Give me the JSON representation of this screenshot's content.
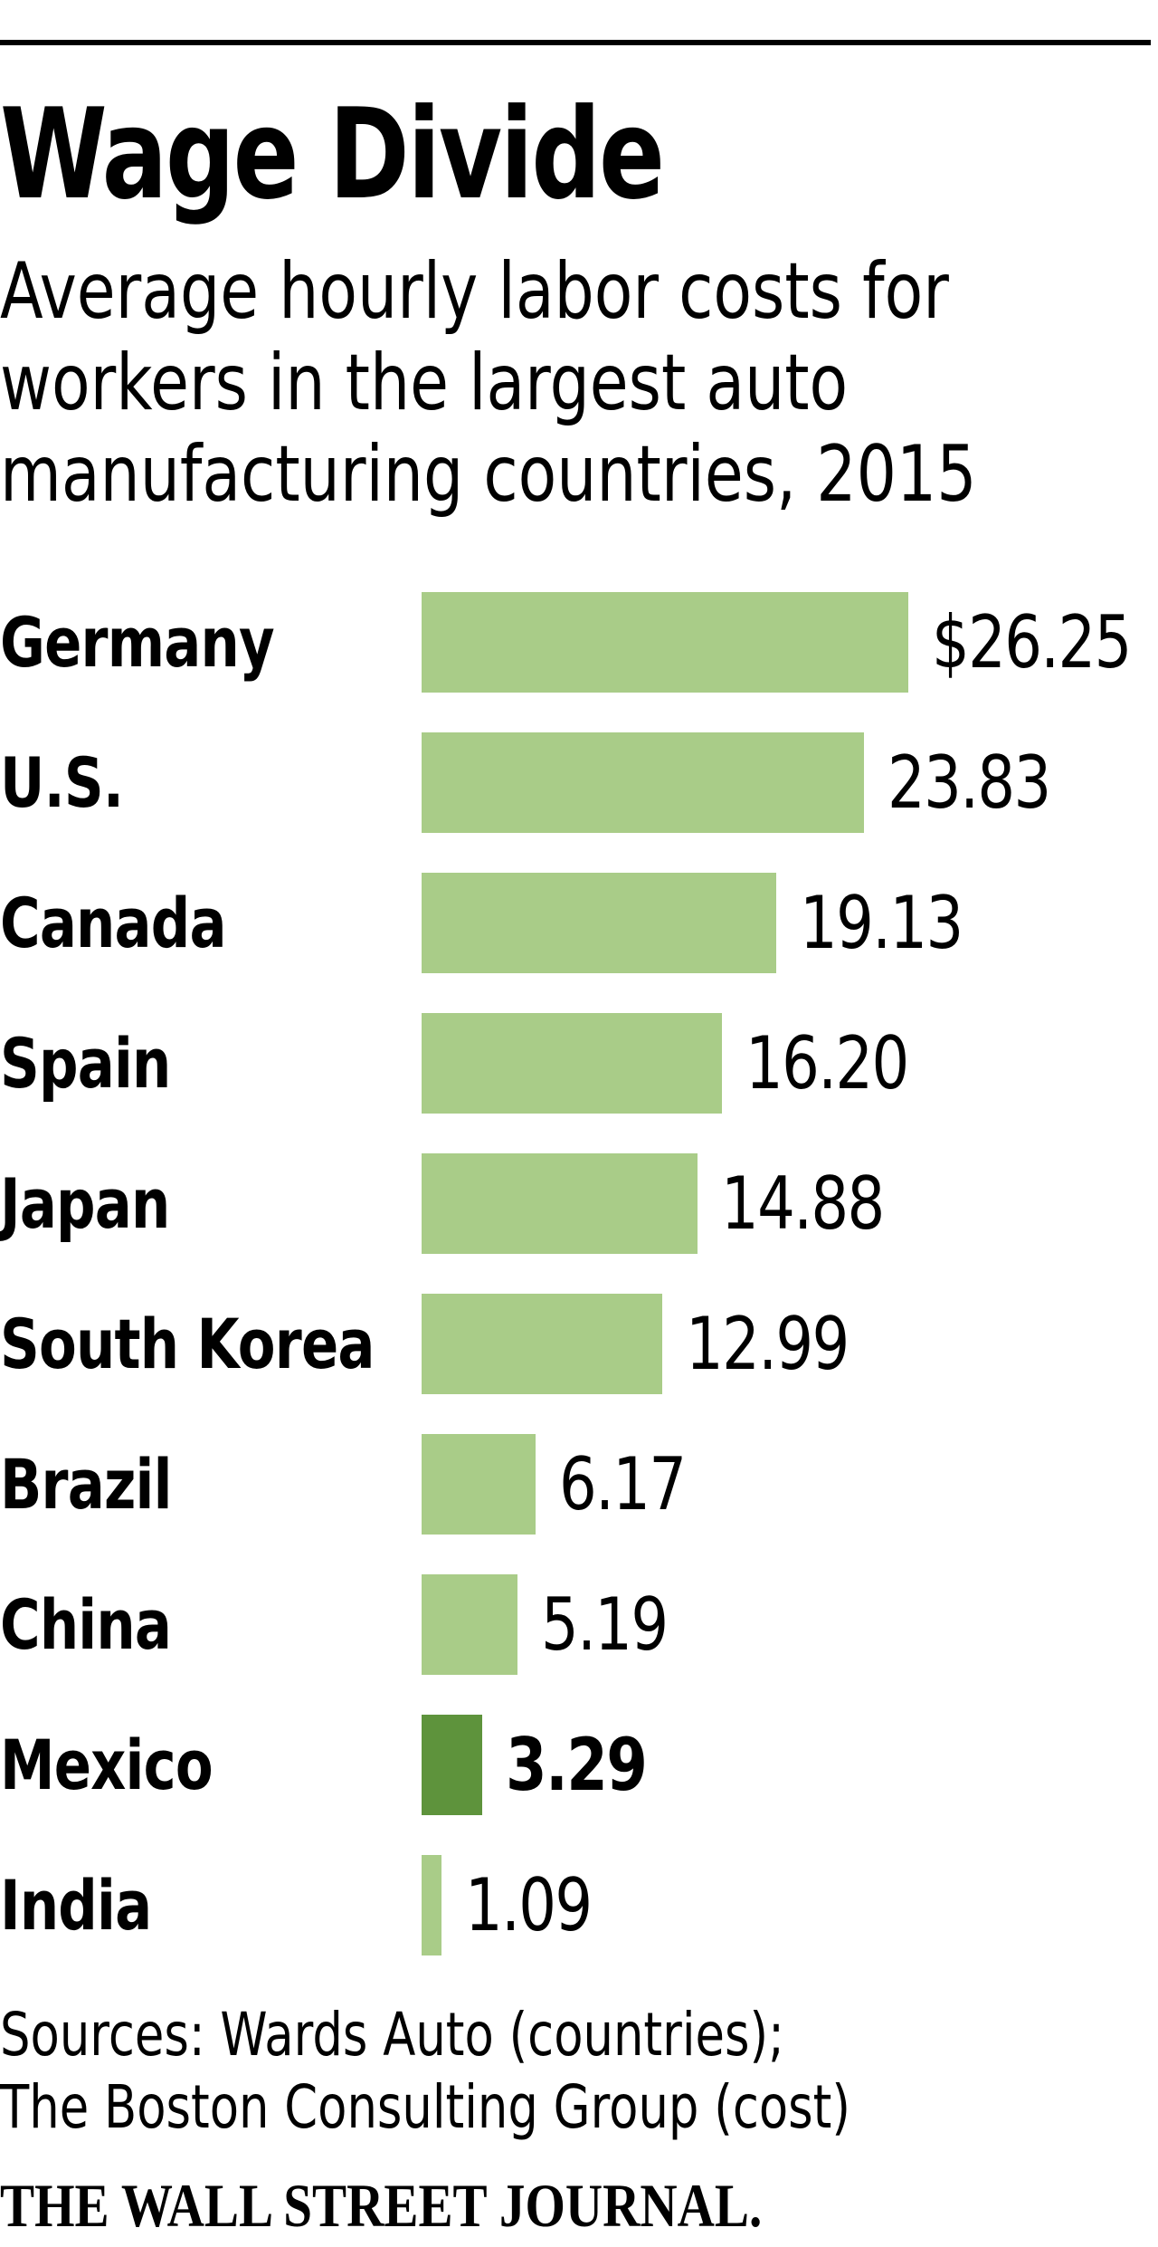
{
  "header": {
    "title": "Wage Divide",
    "subtitle_lines": [
      "Average hourly labor costs for",
      "workers in the largest auto",
      "manufacturing  countries, 2015"
    ]
  },
  "colors": {
    "bar": "#a9cc88",
    "highlight_bar": "#5e933c",
    "text": "#000000"
  },
  "rows": [
    {
      "country": "Germany",
      "label": "$26.25",
      "value": 26.25,
      "highlight": false
    },
    {
      "country": "U.S.",
      "label": "23.83",
      "value": 23.83,
      "highlight": false
    },
    {
      "country": "Canada",
      "label": "19.13",
      "value": 19.13,
      "highlight": false
    },
    {
      "country": "Spain",
      "label": "16.20",
      "value": 16.2,
      "highlight": false
    },
    {
      "country": "Japan",
      "label": "14.88",
      "value": 14.88,
      "highlight": false
    },
    {
      "country": "South Korea",
      "label": "12.99",
      "value": 12.99,
      "highlight": false
    },
    {
      "country": "Brazil",
      "label": "6.17",
      "value": 6.17,
      "highlight": false
    },
    {
      "country": "China",
      "label": "5.19",
      "value": 5.19,
      "highlight": false
    },
    {
      "country": "Mexico",
      "label": "3.29",
      "value": 3.29,
      "highlight": true
    },
    {
      "country": "India",
      "label": "1.09",
      "value": 1.09,
      "highlight": false
    }
  ],
  "footer": {
    "sources_lines": [
      "Sources: Wards Auto (countries);",
      "The Boston Consulting Group (cost)"
    ],
    "publisher": "THE WALL STREET JOURNAL."
  },
  "chart_data": {
    "type": "bar",
    "orientation": "horizontal",
    "title": "Wage Divide",
    "subtitle": "Average hourly labor costs for workers in the largest auto manufacturing countries, 2015",
    "categories": [
      "Germany",
      "U.S.",
      "Canada",
      "Spain",
      "Japan",
      "South Korea",
      "Brazil",
      "China",
      "Mexico",
      "India"
    ],
    "values": [
      26.25,
      23.83,
      19.13,
      16.2,
      14.88,
      12.99,
      6.17,
      5.19,
      3.29,
      1.09
    ],
    "value_labels": [
      "$26.25",
      "23.83",
      "19.13",
      "16.20",
      "14.88",
      "12.99",
      "6.17",
      "5.19",
      "3.29",
      "1.09"
    ],
    "highlighted_category": "Mexico",
    "unit": "USD per hour",
    "xlabel": "",
    "ylabel": "",
    "xlim": [
      0,
      26.25
    ],
    "grid": false,
    "legend": null,
    "source": "Sources: Wards Auto (countries); The Boston Consulting Group (cost)"
  }
}
